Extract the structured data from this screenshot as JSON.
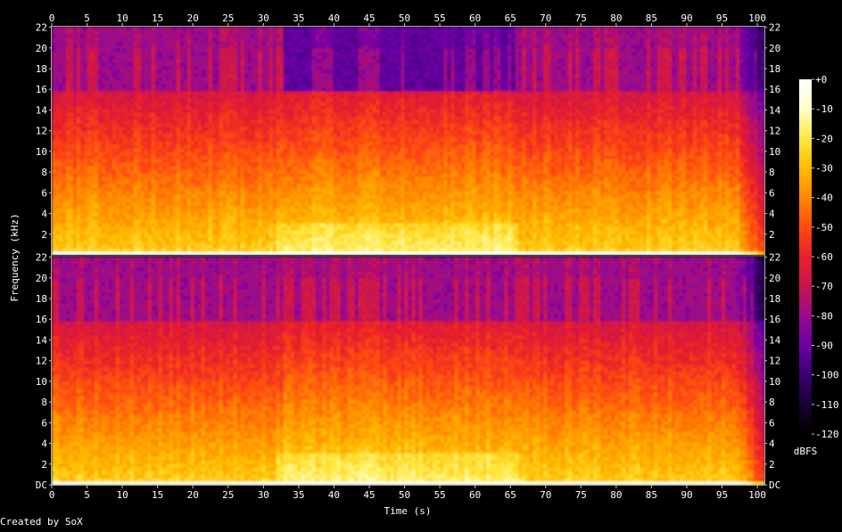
{
  "chart_data": {
    "type": "heatmap",
    "title": "",
    "xlabel": "Time (s)",
    "ylabel": "Frequency (kHz)",
    "x_ticks": [
      "0",
      "5",
      "10",
      "15",
      "20",
      "25",
      "30",
      "35",
      "40",
      "45",
      "50",
      "55",
      "60",
      "65",
      "70",
      "75",
      "80",
      "85",
      "90",
      "95",
      "100"
    ],
    "xlim": [
      0,
      101
    ],
    "channels": [
      {
        "y_ticks": [
          "2",
          "4",
          "6",
          "8",
          "10",
          "12",
          "14",
          "16",
          "18",
          "20",
          "22"
        ],
        "ylim": [
          0,
          22.05
        ],
        "lowpass_khz": 16,
        "band_start_s": 32.8,
        "band_end_s": 65.5,
        "music_end_s": 97
      },
      {
        "y_ticks": [
          "DC",
          "2",
          "4",
          "6",
          "8",
          "10",
          "12",
          "14",
          "16",
          "18",
          "20",
          "22"
        ],
        "ylim": [
          0,
          22.05
        ],
        "lowpass_khz": 16,
        "band_start_s": 32.8,
        "band_end_s": 65.5,
        "music_end_s": 97
      }
    ],
    "colorbar": {
      "label": "dBFS",
      "ticks": [
        "+0",
        "-10",
        "-20",
        "-30",
        "-40",
        "-50",
        "-60",
        "-70",
        "-80",
        "-90",
        "-100",
        "-110",
        "-120"
      ],
      "range": [
        -120,
        0
      ],
      "colors": [
        "#000000",
        "#1a0033",
        "#3b0070",
        "#6a00a8",
        "#9a0a8a",
        "#c8154f",
        "#e8202a",
        "#ff4a10",
        "#ff8800",
        "#ffbb00",
        "#ffe840",
        "#ffffc8",
        "#ffffff"
      ]
    },
    "grid": false
  },
  "footer": {
    "credit": "Created by SoX"
  }
}
